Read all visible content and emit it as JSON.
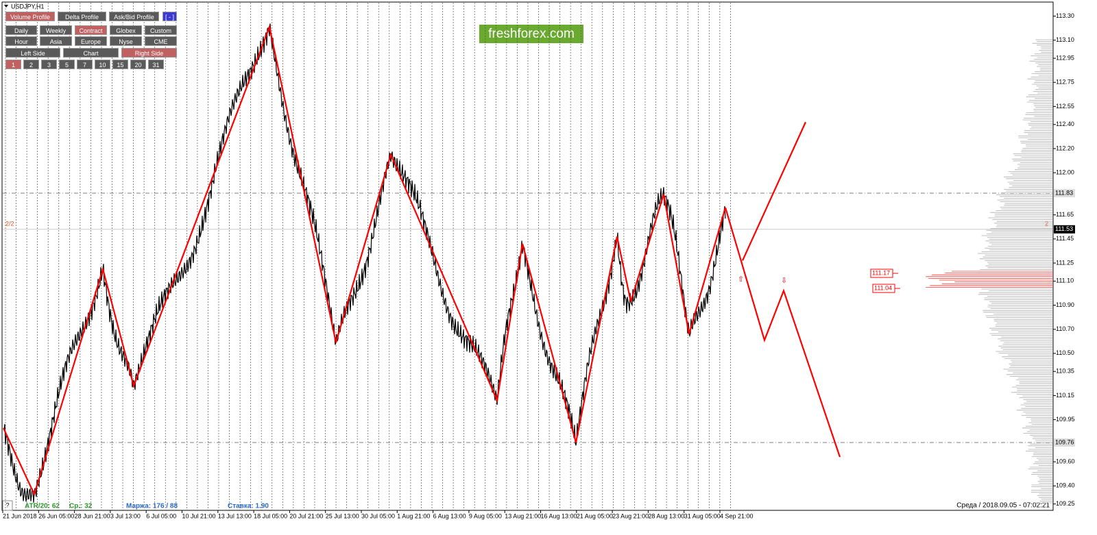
{
  "window_title": "USDJPY,H1",
  "logo": "freshforex.com",
  "toolbar": {
    "rows": [
      [
        {
          "label": "Volume Profile",
          "active": true
        },
        {
          "label": "Delta Profile",
          "active": false
        },
        {
          "label": "Ask/Bid Profile",
          "active": false
        },
        {
          "label": "[ - ]",
          "active": false
        }
      ],
      [
        {
          "label": "Daily",
          "active": false
        },
        {
          "label": "Weekly",
          "active": false
        },
        {
          "label": "Contract",
          "active": true
        },
        {
          "label": "Globex",
          "active": false
        },
        {
          "label": "Custom",
          "active": false
        }
      ],
      [
        {
          "label": "Hour",
          "active": false
        },
        {
          "label": "Asia",
          "active": false
        },
        {
          "label": "Europe",
          "active": false
        },
        {
          "label": "Nyse",
          "active": false
        },
        {
          "label": "CME",
          "active": false
        }
      ],
      [
        {
          "label": "Left Side",
          "active": false
        },
        {
          "label": "Chart",
          "active": false
        },
        {
          "label": "Right Side",
          "active": true
        }
      ],
      [
        {
          "label": "1",
          "active": true
        },
        {
          "label": "2",
          "active": false
        },
        {
          "label": "3",
          "active": false
        },
        {
          "label": "5",
          "active": false
        },
        {
          "label": "7",
          "active": false
        },
        {
          "label": "10",
          "active": false
        },
        {
          "label": "15",
          "active": false
        },
        {
          "label": "20",
          "active": false
        },
        {
          "label": "31",
          "active": false
        }
      ]
    ]
  },
  "price_axis": {
    "labels": [
      "113.30",
      "113.10",
      "112.95",
      "112.75",
      "112.55",
      "112.40",
      "112.20",
      "112.00",
      "111.65",
      "111.45",
      "111.25",
      "111.10",
      "110.90",
      "110.70",
      "110.50",
      "110.35",
      "110.15",
      "109.95",
      "109.60",
      "109.40",
      "109.25"
    ],
    "highlights": [
      "111.83",
      "111.53",
      "109.76"
    ]
  },
  "time_axis": [
    "21 Jun 2018",
    "26 Jun 05:00",
    "28 Jun 21:00",
    "3 Jul 13:00",
    "6 Jul 05:00",
    "10 Jul 21:00",
    "13 Jul 13:00",
    "18 Jul 05:00",
    "20 Jul 21:00",
    "25 Jul 13:00",
    "30 Jul 05:00",
    "1 Aug 21:00",
    "6 Aug 13:00",
    "9 Aug 05:00",
    "13 Aug 21:00",
    "16 Aug 13:00",
    "21 Aug 05:00",
    "23 Aug 21:00",
    "28 Aug 13:00",
    "31 Aug 05:00",
    "4 Sep 21:00"
  ],
  "zigzag": [
    109.88,
    109.33,
    111.2,
    110.23,
    113.21,
    110.59,
    112.15,
    110.11,
    111.41,
    109.76,
    111.47,
    110.93,
    111.82,
    110.66,
    111.71
  ],
  "forecast": [
    111.71,
    110.61,
    111.02,
    109.64
  ],
  "forecast_branch": [
    111.27,
    112.42
  ],
  "levels": {
    "left": "2/2",
    "right": "2"
  },
  "profile_boxes": [
    "111.17",
    "111.04"
  ],
  "status": {
    "atr": "ATR/20: 62",
    "avg": "Ср.: 32",
    "margin": "Маржа: 176 / 88",
    "rate": "Ставка: 1.90",
    "datetime": "Среда / 2018.09.05 - 07:02:21"
  },
  "help": "?"
}
